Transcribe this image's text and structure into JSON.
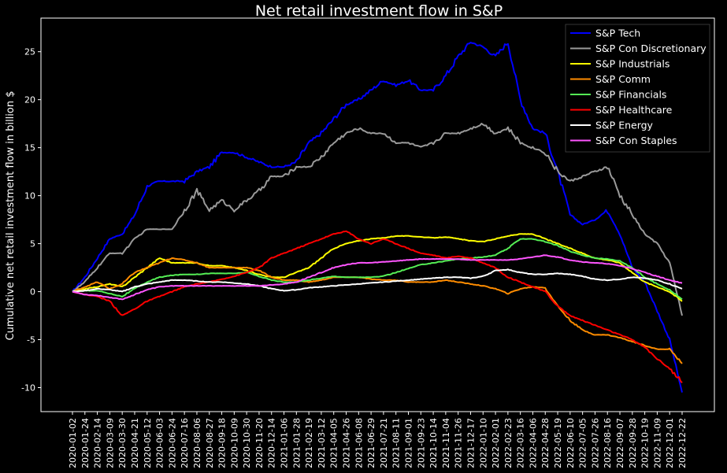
{
  "chart_data": {
    "type": "line",
    "title": "Net retail investment flow in S&P",
    "xlabel": "",
    "ylabel": "Cumulative net retail investment flow in billion $",
    "ylim": [
      -12.5,
      28.5
    ],
    "yticks": [
      -10,
      -5,
      0,
      5,
      10,
      15,
      20,
      25
    ],
    "grid": false,
    "legend_position": "top-right",
    "x_tick_labels": [
      "2020-01-02",
      "2020-01-24",
      "2020-02-14",
      "2020-03-09",
      "2020-03-30",
      "2020-04-21",
      "2020-05-12",
      "2020-06-03",
      "2020-06-24",
      "2020-07-16",
      "2020-08-06",
      "2020-08-27",
      "2020-09-18",
      "2020-10-09",
      "2020-10-30",
      "2020-11-20",
      "2020-12-14",
      "2021-01-06",
      "2021-01-28",
      "2021-02-19",
      "2021-03-12",
      "2021-04-05",
      "2021-04-26",
      "2021-06-08",
      "2021-06-29",
      "2021-07-21",
      "2021-08-11",
      "2021-09-01",
      "2021-09-23",
      "2021-10-14",
      "2021-11-04",
      "2021-11-26",
      "2021-12-17",
      "2022-01-10",
      "2022-02-01",
      "2022-02-23",
      "2022-03-16",
      "2022-04-06",
      "2022-04-28",
      "2022-05-19",
      "2022-06-10",
      "2022-07-05",
      "2022-07-26",
      "2022-08-16",
      "2022-09-07",
      "2022-09-28",
      "2022-10-19",
      "2022-11-09",
      "2022-12-01",
      "2022-12-22"
    ],
    "x": [
      "2020-01-02",
      "2020-01-24",
      "2020-02-14",
      "2020-03-09",
      "2020-03-30",
      "2020-04-21",
      "2020-05-12",
      "2020-06-03",
      "2020-06-24",
      "2020-07-16",
      "2020-08-06",
      "2020-08-27",
      "2020-09-18",
      "2020-10-09",
      "2020-10-30",
      "2020-11-20",
      "2020-12-14",
      "2021-01-06",
      "2021-01-28",
      "2021-02-19",
      "2021-03-12",
      "2021-04-05",
      "2021-04-26",
      "2021-06-08",
      "2021-06-29",
      "2021-07-21",
      "2021-08-11",
      "2021-09-01",
      "2021-09-23",
      "2021-10-14",
      "2021-11-04",
      "2021-11-26",
      "2021-12-17",
      "2022-01-10",
      "2022-02-01",
      "2022-02-23",
      "2022-03-16",
      "2022-04-06",
      "2022-04-28",
      "2022-05-19",
      "2022-06-10",
      "2022-07-05",
      "2022-07-26",
      "2022-08-16",
      "2022-09-07",
      "2022-09-28",
      "2022-10-19",
      "2022-11-09",
      "2022-12-01",
      "2022-12-22"
    ],
    "series": [
      {
        "name": "S&P Tech",
        "color": "#0000ff",
        "values": [
          0,
          1.5,
          3.5,
          5.5,
          6.0,
          8.0,
          11.0,
          11.5,
          11.5,
          11.5,
          12.5,
          13.0,
          14.5,
          14.5,
          14.0,
          13.5,
          13.0,
          13.0,
          13.5,
          15.5,
          16.5,
          18.0,
          19.5,
          20.0,
          21.0,
          22.0,
          21.5,
          22.0,
          21.0,
          21.0,
          22.5,
          24.5,
          26.0,
          25.5,
          24.5,
          26.0,
          20.0,
          17.0,
          16.5,
          12.5,
          8.0,
          7.0,
          7.5,
          8.5,
          6.0,
          2.5,
          1.0,
          -2.0,
          -5.0,
          -10.5
        ]
      },
      {
        "name": "S&P Con Discretionary",
        "color": "#9a9a9a",
        "values": [
          0,
          1.0,
          2.5,
          4.0,
          4.0,
          5.5,
          6.5,
          6.5,
          6.5,
          8.5,
          10.5,
          8.5,
          9.5,
          8.5,
          9.5,
          10.5,
          12.0,
          12.0,
          13.0,
          13.0,
          14.0,
          15.5,
          16.5,
          17.0,
          16.5,
          16.5,
          15.5,
          15.5,
          15.0,
          15.5,
          16.5,
          16.5,
          17.0,
          17.5,
          16.5,
          17.0,
          15.5,
          15.0,
          14.5,
          12.5,
          11.5,
          12.0,
          12.5,
          13.0,
          10.0,
          8.0,
          6.0,
          5.0,
          3.0,
          -2.5
        ]
      },
      {
        "name": "S&P Industrials",
        "color": "#ffff00",
        "values": [
          0,
          0.3,
          0.5,
          0.8,
          0.5,
          1.5,
          2.5,
          3.5,
          3.0,
          3.0,
          3.0,
          2.7,
          2.7,
          2.5,
          2.2,
          1.8,
          1.5,
          1.5,
          2.0,
          2.5,
          3.5,
          4.5,
          5.0,
          5.3,
          5.5,
          5.6,
          5.8,
          5.8,
          5.7,
          5.6,
          5.7,
          5.5,
          5.3,
          5.2,
          5.5,
          5.8,
          6.0,
          6.0,
          5.5,
          5.0,
          4.5,
          4.0,
          3.5,
          3.3,
          3.0,
          2.0,
          1.0,
          0.5,
          0,
          -1.0
        ]
      },
      {
        "name": "S&P Comm",
        "color": "#ff8c00",
        "values": [
          0,
          0.5,
          1.0,
          0.3,
          0.8,
          2.0,
          2.5,
          3.0,
          3.5,
          3.3,
          3.0,
          2.5,
          2.5,
          2.5,
          2.5,
          2.2,
          1.5,
          1.2,
          1.2,
          1.0,
          1.2,
          1.5,
          1.5,
          1.5,
          1.3,
          1.2,
          1.2,
          1.0,
          1.0,
          1.0,
          1.2,
          1.0,
          0.8,
          0.6,
          0.3,
          -0.2,
          0.3,
          0.5,
          0.4,
          -1.5,
          -3.0,
          -4.0,
          -4.5,
          -4.5,
          -4.8,
          -5.2,
          -5.6,
          -6.0,
          -6.0,
          -7.5
        ]
      },
      {
        "name": "S&P Financials",
        "color": "#55ee55",
        "values": [
          0,
          0.1,
          0.1,
          -0.2,
          -0.5,
          0.3,
          1.0,
          1.5,
          1.7,
          1.8,
          1.8,
          1.9,
          1.9,
          1.9,
          2.0,
          1.6,
          1.2,
          1.0,
          1.0,
          1.2,
          1.4,
          1.6,
          1.5,
          1.5,
          1.5,
          1.6,
          2.0,
          2.4,
          2.8,
          3.0,
          3.2,
          3.4,
          3.5,
          3.6,
          3.8,
          4.5,
          5.5,
          5.5,
          5.2,
          4.8,
          4.2,
          3.8,
          3.5,
          3.4,
          3.2,
          2.5,
          1.5,
          0.8,
          0.2,
          -0.8
        ]
      },
      {
        "name": "S&P Healthcare",
        "color": "#ff0000",
        "values": [
          0,
          -0.3,
          -0.5,
          -1.0,
          -2.5,
          -1.8,
          -1.0,
          -0.5,
          0,
          0.5,
          0.8,
          1.0,
          1.3,
          1.6,
          2.0,
          2.5,
          3.5,
          4.0,
          4.5,
          5.0,
          5.5,
          6.0,
          6.3,
          5.5,
          5.0,
          5.5,
          5.0,
          4.5,
          4.0,
          3.8,
          3.5,
          3.7,
          3.5,
          3.0,
          2.5,
          1.5,
          1.0,
          0.5,
          0,
          -1.5,
          -2.5,
          -3.0,
          -3.5,
          -4.0,
          -4.5,
          -5.0,
          -5.8,
          -7.0,
          -8.0,
          -9.5
        ]
      },
      {
        "name": "S&P Energy",
        "color": "#ffffff",
        "values": [
          0,
          0.1,
          0.3,
          0.2,
          0.0,
          0.5,
          0.8,
          1.0,
          1.2,
          1.2,
          1.1,
          1.0,
          1.0,
          0.9,
          0.8,
          0.6,
          0.3,
          0.1,
          0.2,
          0.4,
          0.5,
          0.6,
          0.7,
          0.8,
          0.9,
          1.0,
          1.1,
          1.2,
          1.3,
          1.4,
          1.5,
          1.5,
          1.4,
          1.6,
          2.2,
          2.3,
          2.0,
          1.8,
          1.8,
          1.9,
          1.8,
          1.6,
          1.3,
          1.2,
          1.3,
          1.5,
          1.4,
          1.2,
          0.8,
          0.3
        ]
      },
      {
        "name": "S&P Con Staples",
        "color": "#ff55ff",
        "values": [
          0,
          -0.3,
          -0.4,
          -0.6,
          -0.8,
          -0.3,
          0.2,
          0.5,
          0.6,
          0.6,
          0.6,
          0.6,
          0.6,
          0.6,
          0.6,
          0.6,
          0.7,
          0.8,
          1.0,
          1.5,
          2.0,
          2.5,
          2.8,
          3.0,
          3.0,
          3.1,
          3.2,
          3.3,
          3.4,
          3.4,
          3.4,
          3.4,
          3.3,
          3.3,
          3.3,
          3.3,
          3.4,
          3.6,
          3.8,
          3.6,
          3.3,
          3.1,
          3.0,
          2.9,
          2.7,
          2.4,
          2.0,
          1.6,
          1.2,
          0.9
        ]
      }
    ]
  }
}
